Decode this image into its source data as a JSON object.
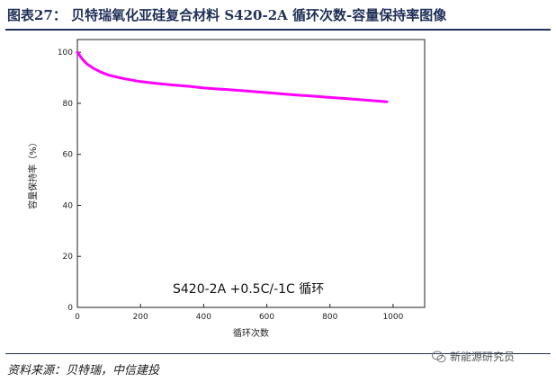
{
  "figure": {
    "title": "图表27： 贝特瑞氧化亚硅复合材料 S420-2A 循环次数-容量保持率图像",
    "source": "资料来源：贝特瑞，中信建投",
    "watermark": "新能源研究员"
  },
  "chart_data": {
    "type": "line",
    "title": "",
    "xlabel": "循环次数",
    "ylabel": "容量保持率（%）",
    "xlim": [
      0,
      1100
    ],
    "ylim": [
      0,
      105
    ],
    "xticks": [
      0,
      200,
      400,
      600,
      800,
      1000
    ],
    "yticks": [
      0,
      20,
      40,
      60,
      80,
      100
    ],
    "annotation": "S420-2A  +0.5C/-1C 循环",
    "grid": false,
    "series": [
      {
        "color": "#ff00ff",
        "x": [
          0,
          5,
          10,
          20,
          30,
          50,
          75,
          100,
          150,
          200,
          250,
          300,
          350,
          400,
          450,
          500,
          550,
          600,
          650,
          700,
          750,
          780,
          800,
          850,
          900,
          950,
          980
        ],
        "y": [
          100,
          99.2,
          98.3,
          96.8,
          95.5,
          93.8,
          92.2,
          91,
          89.6,
          88.5,
          87.8,
          87.2,
          86.7,
          86,
          85.6,
          85.2,
          84.7,
          84.2,
          83.7,
          83.2,
          82.8,
          82.5,
          82.3,
          81.9,
          81.4,
          80.9,
          80.6
        ]
      }
    ]
  }
}
